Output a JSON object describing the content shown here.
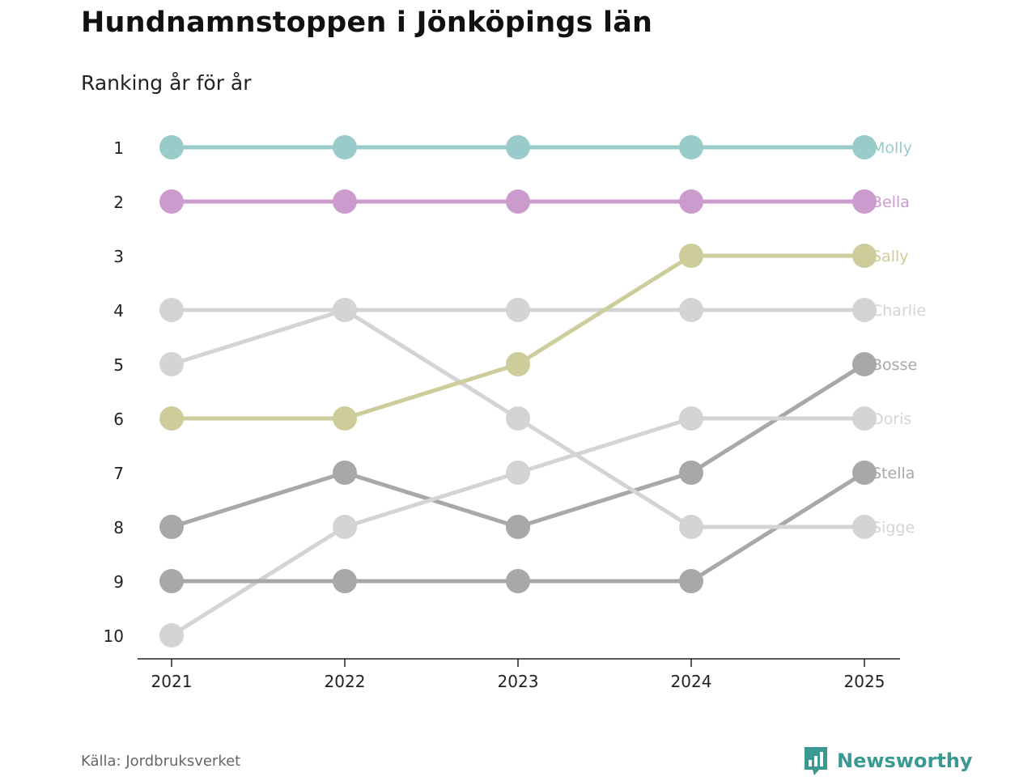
{
  "title": "Hundnamnstoppen i Jönköpings län",
  "subtitle": "Ranking år för år",
  "source": "Källa: Jordbruksverket",
  "brand": "Newsworthy",
  "colors": {
    "highlight_teal": "#98cbc9",
    "highlight_purple": "#cc9bce",
    "highlight_olive": "#cdcd9c",
    "light_gray": "#d4d4d4",
    "dark_gray": "#a8a8a8",
    "axis": "#222222",
    "brand": "#3a9a93"
  },
  "chart_data": {
    "type": "line",
    "title": "Hundnamnstoppen i Jönköpings län",
    "subtitle": "Ranking år för år",
    "xlabel": "",
    "ylabel": "",
    "x": [
      "2021",
      "2022",
      "2023",
      "2024",
      "2025"
    ],
    "y_ticks": [
      "1",
      "2",
      "3",
      "4",
      "5",
      "6",
      "7",
      "8",
      "9",
      "10"
    ],
    "ylim": [
      1,
      10
    ],
    "y_inverted": true,
    "series": [
      {
        "name": "Molly",
        "values": [
          1,
          1,
          1,
          1,
          1
        ],
        "color": "#98cbc9"
      },
      {
        "name": "Bella",
        "values": [
          2,
          2,
          2,
          2,
          2
        ],
        "color": "#cc9bce"
      },
      {
        "name": "Sally",
        "values": [
          6,
          6,
          5,
          3,
          3
        ],
        "color": "#cdcd9c"
      },
      {
        "name": "Charlie",
        "values": [
          4,
          4,
          4,
          4,
          4
        ],
        "color": "#d4d4d4"
      },
      {
        "name": "Bosse",
        "values": [
          8,
          7,
          8,
          7,
          5
        ],
        "color": "#a8a8a8"
      },
      {
        "name": "Doris",
        "values": [
          10,
          8,
          7,
          6,
          6
        ],
        "color": "#d4d4d4"
      },
      {
        "name": "Stella",
        "values": [
          9,
          9,
          9,
          9,
          7
        ],
        "color": "#a8a8a8"
      },
      {
        "name": "Sigge",
        "values": [
          5,
          4,
          6,
          8,
          8
        ],
        "color": "#d4d4d4"
      }
    ]
  }
}
